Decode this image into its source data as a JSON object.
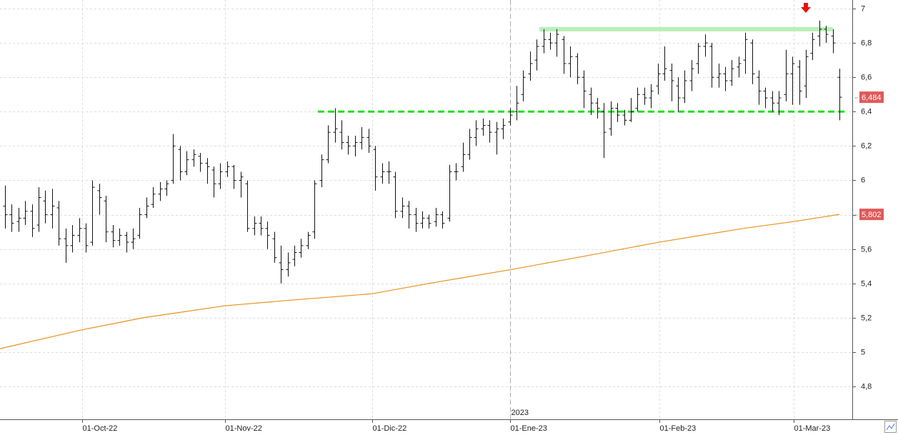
{
  "chart_data": {
    "type": "ohlc",
    "open": [
      5.85,
      5.8,
      5.76,
      5.78,
      5.82,
      5.74,
      5.88,
      5.8,
      5.84,
      5.66,
      5.62,
      5.68,
      5.72,
      5.64,
      5.94,
      5.88,
      5.7,
      5.65,
      5.68,
      5.64,
      5.68,
      5.8,
      5.86,
      5.92,
      5.95,
      6.0,
      6.18,
      6.05,
      6.12,
      6.14,
      6.1,
      6.06,
      5.98,
      6.05,
      6.08,
      6.0,
      5.98,
      5.72,
      5.75,
      5.72,
      5.66,
      5.52,
      5.48,
      5.54,
      5.58,
      5.62,
      5.7,
      6.0,
      6.12,
      6.28,
      6.28,
      6.22,
      6.2,
      6.22,
      6.25,
      6.18,
      6.02,
      6.05,
      6.02,
      5.82,
      5.85,
      5.8,
      5.75,
      5.78,
      5.76,
      5.8,
      5.78,
      6.05,
      6.08,
      6.15,
      6.25,
      6.3,
      6.32,
      6.28,
      6.3,
      6.34,
      6.4,
      6.5,
      6.62,
      6.7,
      6.78,
      6.82,
      6.8,
      6.82,
      6.68,
      6.72,
      6.6,
      6.5,
      6.45,
      6.4,
      6.3,
      6.42,
      6.38,
      6.35,
      6.42,
      6.5,
      6.48,
      6.55,
      6.62,
      6.64,
      6.55,
      6.48,
      6.58,
      6.68,
      6.78,
      6.78,
      6.6,
      6.62,
      6.58,
      6.66,
      6.7,
      6.8,
      6.6,
      6.52,
      6.48,
      6.45,
      6.5,
      6.62,
      6.66,
      6.55,
      6.74,
      6.84,
      6.88,
      6.84,
      6.6
    ],
    "high": [
      5.97,
      5.86,
      5.84,
      5.88,
      5.86,
      5.96,
      5.94,
      5.95,
      5.88,
      5.72,
      5.74,
      5.78,
      5.75,
      6.0,
      5.98,
      5.91,
      5.74,
      5.72,
      5.7,
      5.72,
      5.84,
      5.9,
      5.96,
      5.99,
      6.0,
      6.27,
      6.2,
      6.17,
      6.18,
      6.16,
      6.13,
      6.08,
      6.1,
      6.11,
      6.09,
      6.05,
      6.0,
      5.79,
      5.79,
      5.76,
      5.7,
      5.62,
      5.58,
      5.62,
      5.66,
      5.7,
      6.0,
      6.15,
      6.32,
      6.42,
      6.35,
      6.26,
      6.26,
      6.31,
      6.3,
      6.2,
      6.1,
      6.11,
      6.05,
      5.9,
      5.88,
      5.84,
      5.82,
      5.8,
      5.84,
      5.82,
      6.09,
      6.1,
      6.22,
      6.3,
      6.35,
      6.36,
      6.35,
      6.34,
      6.36,
      6.42,
      6.55,
      6.64,
      6.75,
      6.82,
      6.88,
      6.86,
      6.88,
      6.84,
      6.78,
      6.74,
      6.64,
      6.54,
      6.48,
      6.45,
      6.46,
      6.45,
      6.41,
      6.48,
      6.54,
      6.54,
      6.56,
      6.68,
      6.78,
      6.68,
      6.6,
      6.64,
      6.7,
      6.8,
      6.85,
      6.8,
      6.68,
      6.66,
      6.7,
      6.72,
      6.86,
      6.82,
      6.64,
      6.54,
      6.52,
      6.52,
      6.76,
      6.72,
      6.7,
      6.76,
      6.86,
      6.93,
      6.9,
      6.88,
      6.65
    ],
    "low": [
      5.72,
      5.7,
      5.7,
      5.74,
      5.67,
      5.7,
      5.75,
      5.72,
      5.62,
      5.52,
      5.58,
      5.64,
      5.58,
      5.62,
      5.8,
      5.64,
      5.61,
      5.62,
      5.58,
      5.6,
      5.66,
      5.78,
      5.84,
      5.88,
      5.91,
      5.98,
      6.0,
      6.03,
      6.08,
      6.05,
      5.98,
      5.9,
      5.95,
      6.02,
      5.95,
      5.9,
      5.7,
      5.68,
      5.68,
      5.6,
      5.52,
      5.4,
      5.44,
      5.5,
      5.55,
      5.6,
      5.66,
      5.96,
      6.1,
      6.22,
      6.18,
      6.15,
      6.14,
      6.18,
      6.16,
      5.94,
      5.98,
      5.98,
      5.78,
      5.78,
      5.72,
      5.7,
      5.72,
      5.72,
      5.73,
      5.72,
      5.76,
      6.0,
      6.05,
      6.12,
      6.2,
      6.26,
      6.22,
      6.15,
      6.24,
      6.32,
      6.35,
      6.46,
      6.58,
      6.64,
      6.74,
      6.76,
      6.72,
      6.62,
      6.6,
      6.56,
      6.42,
      6.38,
      6.36,
      6.13,
      6.26,
      6.34,
      6.32,
      6.34,
      6.4,
      6.44,
      6.42,
      6.5,
      6.58,
      6.46,
      6.4,
      6.45,
      6.52,
      6.62,
      6.72,
      6.54,
      6.54,
      6.52,
      6.55,
      6.6,
      6.62,
      6.56,
      6.44,
      6.42,
      6.4,
      6.38,
      6.46,
      6.44,
      6.44,
      6.48,
      6.7,
      6.78,
      6.8,
      6.74,
      6.35
    ],
    "close": [
      5.8,
      5.75,
      5.78,
      5.82,
      5.72,
      5.9,
      5.8,
      5.85,
      5.66,
      5.62,
      5.68,
      5.72,
      5.62,
      5.96,
      5.9,
      5.7,
      5.65,
      5.68,
      5.64,
      5.66,
      5.8,
      5.85,
      5.92,
      5.95,
      5.98,
      6.2,
      6.05,
      6.12,
      6.15,
      6.1,
      6.08,
      5.98,
      6.05,
      6.08,
      6.0,
      6.02,
      5.72,
      5.75,
      5.72,
      5.68,
      5.55,
      5.48,
      5.52,
      5.58,
      5.62,
      5.68,
      5.98,
      6.12,
      6.28,
      6.3,
      6.22,
      6.2,
      6.22,
      6.25,
      6.2,
      6.02,
      6.05,
      6.05,
      5.82,
      5.85,
      5.8,
      5.75,
      5.78,
      5.75,
      5.8,
      5.75,
      6.05,
      6.05,
      6.15,
      6.25,
      6.3,
      6.32,
      6.28,
      6.3,
      6.32,
      6.38,
      6.45,
      6.6,
      6.68,
      6.78,
      6.82,
      6.8,
      6.85,
      6.68,
      6.72,
      6.6,
      6.52,
      6.45,
      6.42,
      6.28,
      6.42,
      6.38,
      6.35,
      6.4,
      6.5,
      6.48,
      6.52,
      6.62,
      6.65,
      6.58,
      6.48,
      6.58,
      6.65,
      6.78,
      6.8,
      6.6,
      6.62,
      6.58,
      6.65,
      6.68,
      6.82,
      6.62,
      6.52,
      6.48,
      6.45,
      6.48,
      6.62,
      6.68,
      6.52,
      6.72,
      6.82,
      6.88,
      6.85,
      6.8,
      6.484
    ],
    "bar_color": "#111111",
    "moving_average": {
      "color": "#e8921e",
      "x": [
        -0.74,
        11.46,
        20.5,
        32.7,
        41.7,
        54.6,
        63.0,
        75.1,
        86.3,
        97.2,
        109.7,
        117.2,
        124
      ],
      "values": [
        5.02,
        5.13,
        5.2,
        5.27,
        5.3,
        5.34,
        5.4,
        5.48,
        5.56,
        5.64,
        5.72,
        5.76,
        5.802
      ]
    },
    "levels": [
      {
        "value": 6.4,
        "x": [
          46.5,
          125.1
        ],
        "color": "#22dd22",
        "style": "dashed"
      },
      {
        "value": 6.88,
        "x": [
          79.4,
          123
        ],
        "color": "#b8f0b8",
        "style": "solid"
      }
    ],
    "signal": {
      "x": 119,
      "color": "#e81010"
    },
    "price_labels": [
      {
        "value": 6.484,
        "label": "6,484"
      },
      {
        "value": 5.802,
        "label": "5,802"
      }
    ],
    "price_label_color": "#e05a5a",
    "year_label": {
      "value": 75.1,
      "label": "2023"
    },
    "xlim": [
      -0.74,
      125.9
    ],
    "ylim": [
      4.609,
      7.05
    ],
    "xticks": [
      {
        "value": 11.5,
        "label": "01-Oct-22"
      },
      {
        "value": 32.7,
        "label": "01-Nov-22"
      },
      {
        "value": 54.6,
        "label": "01-Dic-22"
      },
      {
        "value": 75.1,
        "label": "01-Ene-23"
      },
      {
        "value": 97.2,
        "label": "01-Feb-23"
      },
      {
        "value": 117.2,
        "label": "01-Mar-23"
      }
    ],
    "yticks": [
      {
        "value": 4.8,
        "label": "4,8"
      },
      5,
      {
        "value": 5.2,
        "label": "5,2"
      },
      {
        "value": 5.4,
        "label": "5,4"
      },
      {
        "value": 5.6,
        "label": "5,6"
      },
      {
        "value": 5.8,
        "label": "5,8"
      },
      6,
      {
        "value": 6.2,
        "label": "6,2"
      },
      {
        "value": 6.4,
        "label": "6,4"
      },
      {
        "value": 6.6,
        "label": "6,6"
      },
      {
        "value": 6.8,
        "label": "6,8"
      },
      7
    ],
    "grid": true
  }
}
